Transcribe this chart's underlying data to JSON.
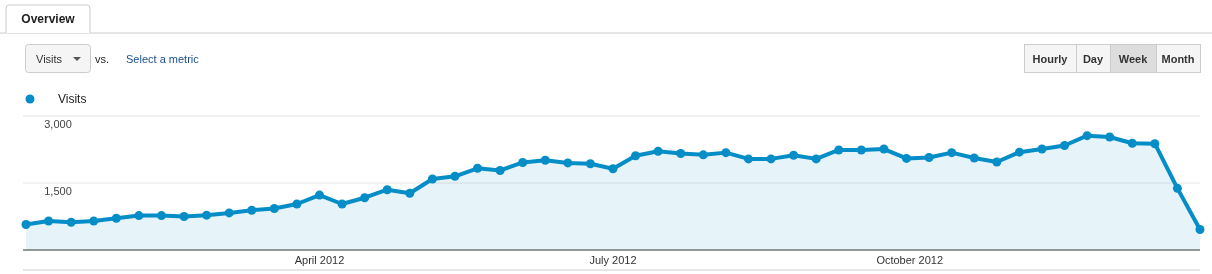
{
  "chart_data": {
    "type": "area",
    "x": [
      "2012-01-01",
      "2012-01-08",
      "2012-01-15",
      "2012-01-22",
      "2012-01-29",
      "2012-02-05",
      "2012-02-12",
      "2012-02-19",
      "2012-02-26",
      "2012-03-04",
      "2012-03-11",
      "2012-03-18",
      "2012-03-25",
      "2012-04-01",
      "2012-04-08",
      "2012-04-15",
      "2012-04-22",
      "2012-04-29",
      "2012-05-06",
      "2012-05-13",
      "2012-05-20",
      "2012-05-27",
      "2012-06-03",
      "2012-06-10",
      "2012-06-17",
      "2012-06-24",
      "2012-07-01",
      "2012-07-08",
      "2012-07-15",
      "2012-07-22",
      "2012-07-29",
      "2012-08-05",
      "2012-08-12",
      "2012-08-19",
      "2012-08-26",
      "2012-09-02",
      "2012-09-09",
      "2012-09-16",
      "2012-09-23",
      "2012-09-30",
      "2012-10-07",
      "2012-10-14",
      "2012-10-21",
      "2012-10-28",
      "2012-11-04",
      "2012-11-11",
      "2012-11-18",
      "2012-11-25",
      "2012-12-02",
      "2012-12-09",
      "2012-12-16",
      "2012-12-23",
      "2012-12-30"
    ],
    "series": [
      {
        "name": "Visits",
        "color": "#058dc7",
        "values": [
          570,
          650,
          620,
          650,
          710,
          770,
          770,
          750,
          780,
          830,
          890,
          930,
          1030,
          1230,
          1030,
          1170,
          1350,
          1270,
          1590,
          1650,
          1830,
          1780,
          1960,
          2010,
          1950,
          1930,
          1820,
          2110,
          2210,
          2160,
          2130,
          2180,
          2040,
          2040,
          2120,
          2040,
          2240,
          2240,
          2260,
          2050,
          2070,
          2180,
          2060,
          1970,
          2190,
          2260,
          2340,
          2560,
          2530,
          2390,
          2380,
          1380,
          460
        ]
      }
    ],
    "ylim": [
      0,
      3000
    ],
    "yticks": [
      {
        "value": 1500,
        "label": "1,500"
      },
      {
        "value": 3000,
        "label": "3,000"
      }
    ],
    "xlim": [
      "2012-01-01",
      "2012-12-30"
    ],
    "xticks": [
      {
        "value": "2012-04-01",
        "label": "April 2012"
      },
      {
        "value": "2012-07-01",
        "label": "July 2012"
      },
      {
        "value": "2012-10-01",
        "label": "October 2012"
      }
    ],
    "grid": "y",
    "legend": "top left",
    "marker": "circle",
    "line_style": "solid",
    "annotations": [
      "Overview",
      "Visits",
      "vs.",
      "Select a metric",
      "Hourly",
      "Day",
      "Week",
      "Month"
    ]
  }
}
